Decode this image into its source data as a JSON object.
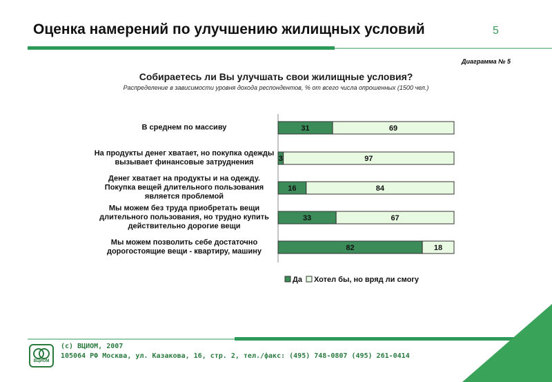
{
  "header": {
    "title": "Оценка намерений по улучшению жилищных условий",
    "page_number": "5"
  },
  "diagram_label": "Диаграмма № 5",
  "chart_data": {
    "type": "bar",
    "orientation": "horizontal",
    "stacked": true,
    "title": "Собираетесь ли Вы улучшать свои жилищные условия?",
    "subtitle": "Распределение в зависимости уровня дохода респондентов, % от всего числа опрошенных (1500 чел.)",
    "categories": [
      "В среднем по массиву",
      "На продукты денег хватает, но покупка одежды вызывает финансовые затруднения",
      "Денег хватает на продукты и на одежду. Покупка вещей длительного пользования является проблемой",
      "Мы можем без труда приобретать вещи длительного пользования, но трудно купить действительно дорогие вещи",
      "Мы можем позволить себе достаточно дорогостоящие вещи - квартиру, машину"
    ],
    "series": [
      {
        "name": "Да",
        "color": "#3c8c5a",
        "values": [
          31,
          3,
          16,
          33,
          82
        ]
      },
      {
        "name": "Хотел бы, но вряд ли смогу",
        "color": "#e8fbe2",
        "values": [
          69,
          97,
          84,
          67,
          18
        ]
      }
    ],
    "xlim": [
      0,
      100
    ]
  },
  "footer": {
    "copyright": "(с) ВЦИОМ, 2007",
    "address": "105064 РФ Москва, ул. Казакова, 16, стр. 2, тел./факс: (495) 748-0807 (495) 261-0414",
    "logo": "ВЦИОМ"
  }
}
